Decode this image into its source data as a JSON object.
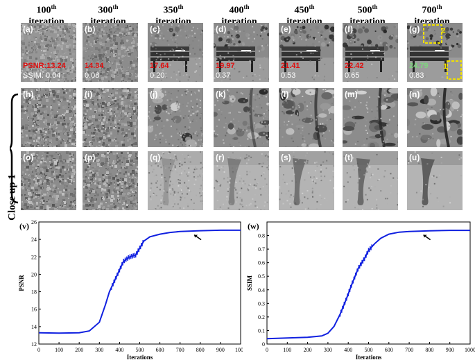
{
  "columns": [
    {
      "num": "100",
      "sup": "th",
      "word": "iteration"
    },
    {
      "num": "300",
      "sup": "th",
      "word": "iteration"
    },
    {
      "num": "350",
      "sup": "th",
      "word": "iteration"
    },
    {
      "num": "400",
      "sup": "th",
      "word": "iteration"
    },
    {
      "num": "450",
      "sup": "th",
      "word": "iteration"
    },
    {
      "num": "500",
      "sup": "th",
      "word": "iteration"
    },
    {
      "num": "700",
      "sup": "th",
      "word": "iteration"
    }
  ],
  "row1_labels": [
    "(a)",
    "(b)",
    "(c)",
    "(d)",
    "(e)",
    "(f)",
    "(g)"
  ],
  "row2_labels": [
    "(h)",
    "(i)",
    "(j)",
    "(k)",
    "(l)",
    "(m)",
    "(n)"
  ],
  "row3_labels": [
    "(o)",
    "(p)",
    "(q)",
    "(r)",
    "(s)",
    "(t)",
    "(u)"
  ],
  "psnr_values": [
    "PSNR:13.24",
    "14.34",
    "17.64",
    "19.97",
    "21.41",
    "22.42",
    "24.79"
  ],
  "ssim_values": [
    "SSIM: 0.04",
    "0.08",
    "0.20",
    "0.37",
    "0.53",
    "0.65",
    "0.83"
  ],
  "inset_marks": [
    "1",
    "2"
  ],
  "side_label": "Close up 1",
  "colors": {
    "psnr_red": "#e01010",
    "psnr_green": "#7ed67e",
    "curve": "#1020e0",
    "box": "#f0e000"
  },
  "chart_data": [
    {
      "type": "line",
      "panel": "(v)",
      "xlabel": "Iterations",
      "ylabel": "PSNR",
      "xlim": [
        0,
        1000
      ],
      "ylim": [
        12,
        26
      ],
      "xticks": [
        "0",
        "100",
        "200",
        "300",
        "400",
        "500",
        "600",
        "700",
        "800",
        "900",
        "1000"
      ],
      "yticks": [
        "12",
        "14",
        "16",
        "18",
        "20",
        "22",
        "24",
        "26"
      ],
      "x": [
        0,
        100,
        200,
        250,
        300,
        330,
        350,
        380,
        400,
        420,
        450,
        480,
        500,
        520,
        550,
        600,
        650,
        700,
        800,
        900,
        1000
      ],
      "y": [
        13.3,
        13.25,
        13.3,
        13.5,
        14.5,
        16.5,
        18,
        19.5,
        20.5,
        21.5,
        22,
        22.2,
        23,
        23.8,
        24.3,
        24.6,
        24.8,
        24.9,
        25,
        25.05,
        25.05
      ],
      "annotation": "arrow at ~770"
    },
    {
      "type": "line",
      "panel": "(w)",
      "xlabel": "Iterations",
      "ylabel": "SSIM",
      "xlim": [
        0,
        1000
      ],
      "ylim": [
        0,
        0.9
      ],
      "xticks": [
        "0",
        "100",
        "200",
        "300",
        "400",
        "500",
        "600",
        "700",
        "800",
        "900",
        "1000"
      ],
      "yticks": [
        "0",
        "0.1",
        "0.2",
        "0.3",
        "0.4",
        "0.5",
        "0.6",
        "0.7",
        "0.8"
      ],
      "x": [
        0,
        100,
        200,
        270,
        300,
        330,
        360,
        390,
        420,
        450,
        480,
        500,
        530,
        560,
        600,
        650,
        700,
        800,
        900,
        1000
      ],
      "y": [
        0.04,
        0.045,
        0.05,
        0.06,
        0.08,
        0.13,
        0.22,
        0.33,
        0.45,
        0.56,
        0.63,
        0.69,
        0.74,
        0.78,
        0.81,
        0.825,
        0.83,
        0.835,
        0.838,
        0.838
      ],
      "annotation": "arrow at ~770"
    }
  ]
}
